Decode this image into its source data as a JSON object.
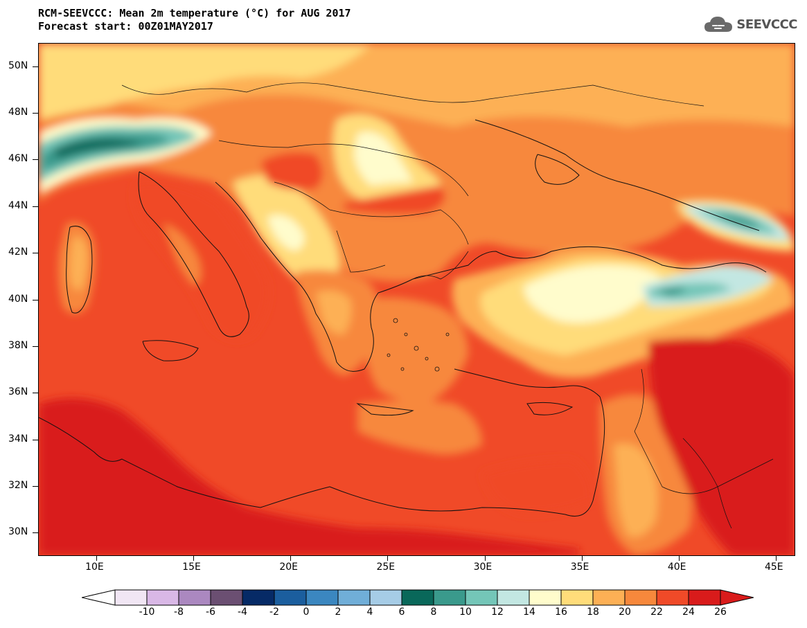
{
  "header": {
    "title_line1": "RCM-SEEVCCC: Mean 2m temperature (°C) for AUG 2017",
    "title_line2": "Forecast start: 00Z01MAY2017"
  },
  "logo": {
    "text": "SEEVCCC",
    "icon": "cloud-icon"
  },
  "map": {
    "variable": "Mean 2m temperature",
    "units": "°C",
    "lon_range": [
      7,
      46
    ],
    "lat_range": [
      29,
      51
    ],
    "lat_ticks": [
      "50N",
      "48N",
      "46N",
      "44N",
      "42N",
      "40N",
      "38N",
      "36N",
      "34N",
      "32N",
      "30N"
    ],
    "lon_ticks": [
      "10E",
      "15E",
      "20E",
      "25E",
      "30E",
      "35E",
      "40E",
      "45E"
    ]
  },
  "colorbar": {
    "labels": [
      "-10",
      "-8",
      "-6",
      "-4",
      "-2",
      "0",
      "2",
      "4",
      "6",
      "8",
      "10",
      "12",
      "14",
      "16",
      "18",
      "20",
      "22",
      "24",
      "26"
    ],
    "colors": [
      "#f1e6f4",
      "#d9b8e6",
      "#ab88c0",
      "#6b4f72",
      "#062a66",
      "#1b5e9e",
      "#3b87c0",
      "#70aed8",
      "#a6cce6",
      "#09685a",
      "#3a9a8c",
      "#74c6b8",
      "#c3e7e2",
      "#fffccc",
      "#ffdc7a",
      "#fdb055",
      "#f7883c",
      "#f04a28",
      "#d91b1b"
    ],
    "under_color": "#ffffff",
    "over_color": "#d91b1b"
  }
}
